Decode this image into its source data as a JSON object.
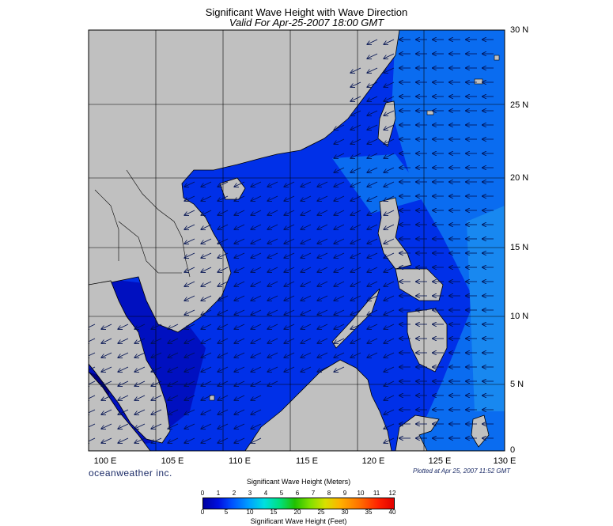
{
  "title": "Significant Wave Height with Wave Direction",
  "subtitle": "Valid For Apr-25-2007 18:00 GMT",
  "lat_labels": [
    "30 N",
    "25 N",
    "20 N",
    "15 N",
    "10 N",
    "5 N",
    "0"
  ],
  "lon_labels": [
    "100 E",
    "105 E",
    "110 E",
    "115 E",
    "120 E",
    "125 E",
    "130 E"
  ],
  "brand": "oceanweather inc.",
  "plotted": "Plotted at Apr 25, 2007 11:52 GMT",
  "colorbar": {
    "title_meters": "Significant Wave Height (Meters)",
    "title_feet": "Significant Wave Height (Feet)",
    "meters": [
      "0",
      "1",
      "2",
      "3",
      "4",
      "5",
      "6",
      "7",
      "8",
      "9",
      "10",
      "11",
      "12"
    ],
    "feet": [
      "0",
      "5",
      "10",
      "15",
      "20",
      "25",
      "30",
      "35",
      "40"
    ]
  },
  "colors": {
    "land": "#c0c0c0",
    "deep": "#0000c8",
    "mid": "#0040f0",
    "light": "#0a78f0"
  }
}
